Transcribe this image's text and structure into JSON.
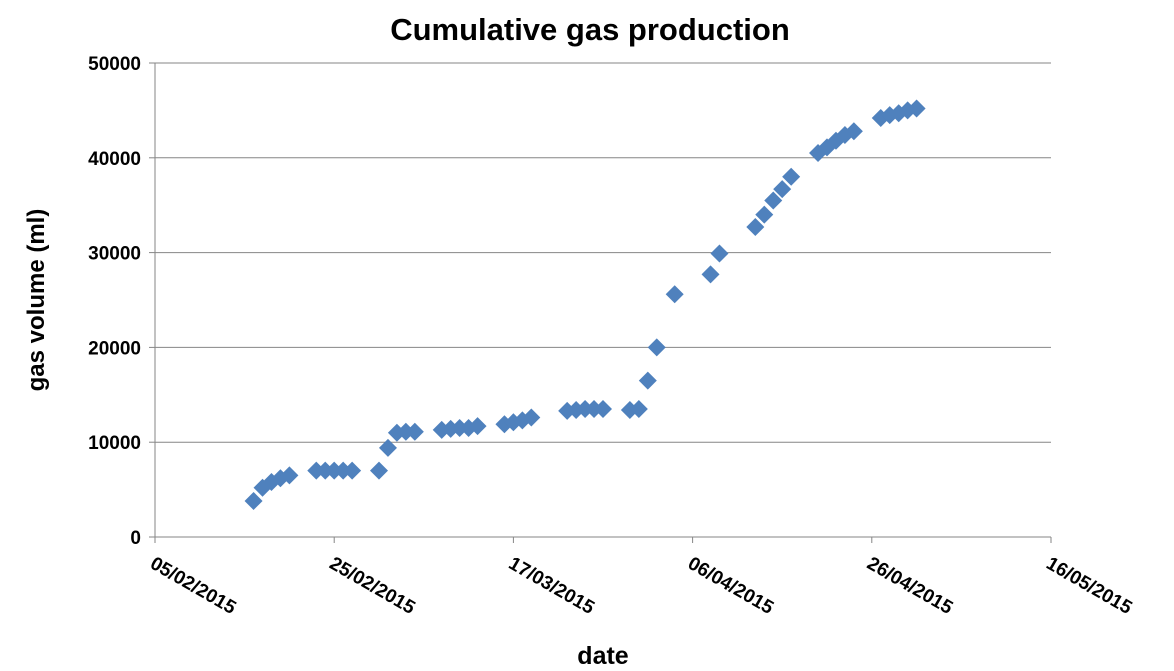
{
  "chart_data": {
    "type": "scatter",
    "title": "Cumulative gas production",
    "x_label": "date",
    "y_label": "gas volume (ml)",
    "color": "#4f81bd",
    "grid": true,
    "x": [
      "2015-02-16",
      "2015-02-17",
      "2015-02-18",
      "2015-02-19",
      "2015-02-20",
      "2015-02-23",
      "2015-02-24",
      "2015-02-25",
      "2015-02-26",
      "2015-02-27",
      "2015-03-02",
      "2015-03-03",
      "2015-03-04",
      "2015-03-05",
      "2015-03-06",
      "2015-03-09",
      "2015-03-10",
      "2015-03-11",
      "2015-03-12",
      "2015-03-13",
      "2015-03-16",
      "2015-03-17",
      "2015-03-18",
      "2015-03-19",
      "2015-03-23",
      "2015-03-24",
      "2015-03-25",
      "2015-03-26",
      "2015-03-27",
      "2015-03-30",
      "2015-03-31",
      "2015-04-01",
      "2015-04-02",
      "2015-04-04",
      "2015-04-08",
      "2015-04-09",
      "2015-04-13",
      "2015-04-14",
      "2015-04-15",
      "2015-04-16",
      "2015-04-17",
      "2015-04-20",
      "2015-04-21",
      "2015-04-22",
      "2015-04-23",
      "2015-04-24",
      "2015-04-27",
      "2015-04-28",
      "2015-04-29",
      "2015-04-30",
      "2015-05-01"
    ],
    "values": [
      3800,
      5200,
      5800,
      6200,
      6500,
      7000,
      7000,
      7000,
      7000,
      7000,
      7000,
      9400,
      11000,
      11100,
      11100,
      11300,
      11400,
      11500,
      11500,
      11700,
      11900,
      12100,
      12300,
      12600,
      13300,
      13400,
      13500,
      13500,
      13500,
      13400,
      13500,
      16500,
      20000,
      25600,
      27700,
      29900,
      32700,
      34000,
      35500,
      36700,
      38000,
      40500,
      41100,
      41800,
      42400,
      42800,
      44200,
      44500,
      44700,
      45000,
      45200
    ],
    "xlim": [
      "2015-02-05",
      "2015-05-16"
    ],
    "xticks": [
      {
        "value": "2015-02-05",
        "label": "05/02/2015"
      },
      {
        "value": "2015-02-25",
        "label": "25/02/2015"
      },
      {
        "value": "2015-03-17",
        "label": "17/03/2015"
      },
      {
        "value": "2015-04-06",
        "label": "06/04/2015"
      },
      {
        "value": "2015-04-26",
        "label": "26/04/2015"
      },
      {
        "value": "2015-05-16",
        "label": "16/05/2015"
      }
    ],
    "ylim": [
      0,
      50000
    ],
    "yticks": [
      0,
      10000,
      20000,
      30000,
      40000,
      50000
    ]
  }
}
